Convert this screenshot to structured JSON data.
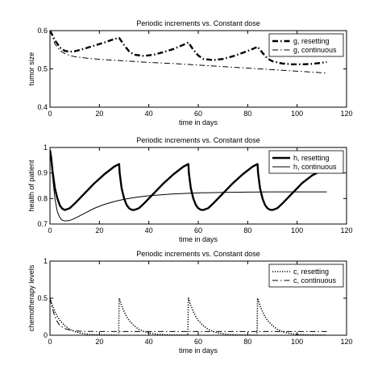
{
  "chart_data": [
    {
      "type": "line",
      "title": "Periodic increments vs. Constant dose",
      "xlabel": "time in days",
      "ylabel": "tumor size",
      "xlim": [
        0,
        120
      ],
      "ylim": [
        0.4,
        0.6
      ],
      "xticks": [
        "0",
        "20",
        "40",
        "60",
        "80",
        "100",
        "120"
      ],
      "yticks": [
        "0.4",
        "0.5",
        "0.6"
      ],
      "legend_position": "top-right",
      "grid": false,
      "series": [
        {
          "name": "g, resetting",
          "style": "dashdot-thick",
          "x": [
            0,
            1,
            2,
            4,
            6,
            8,
            10,
            14,
            18,
            22,
            26,
            28,
            30,
            32,
            34,
            38,
            42,
            46,
            50,
            54,
            56,
            58,
            60,
            62,
            66,
            70,
            74,
            78,
            82,
            84,
            86,
            88,
            90,
            94,
            98,
            102,
            106,
            110,
            112
          ],
          "y": [
            0.6,
            0.588,
            0.575,
            0.556,
            0.547,
            0.545,
            0.546,
            0.553,
            0.561,
            0.569,
            0.578,
            0.581,
            0.562,
            0.546,
            0.537,
            0.534,
            0.537,
            0.544,
            0.552,
            0.563,
            0.569,
            0.55,
            0.535,
            0.526,
            0.523,
            0.526,
            0.533,
            0.542,
            0.552,
            0.558,
            0.542,
            0.527,
            0.52,
            0.514,
            0.512,
            0.512,
            0.513,
            0.516,
            0.518
          ]
        },
        {
          "name": "g, continuous",
          "style": "dashdot-thin",
          "x": [
            0,
            1,
            2,
            4,
            6,
            8,
            10,
            15,
            20,
            30,
            40,
            50,
            60,
            70,
            80,
            90,
            100,
            110,
            112
          ],
          "y": [
            0.6,
            0.585,
            0.565,
            0.548,
            0.54,
            0.535,
            0.532,
            0.528,
            0.525,
            0.521,
            0.517,
            0.514,
            0.51,
            0.506,
            0.502,
            0.498,
            0.494,
            0.49,
            0.489
          ]
        }
      ]
    },
    {
      "type": "line",
      "title": "Periodic increments vs. Constant dose",
      "xlabel": "time in days",
      "ylabel": "health of patient",
      "xlim": [
        0,
        120
      ],
      "ylim": [
        0.7,
        1
      ],
      "xticks": [
        "0",
        "20",
        "40",
        "60",
        "80",
        "100",
        "120"
      ],
      "yticks": [
        "0.7",
        "0.8",
        "0.9",
        "1"
      ],
      "legend_position": "top-right",
      "grid": false,
      "series": [
        {
          "name": "h, resetting",
          "style": "solid-thick",
          "x": [
            0,
            0.5,
            1,
            2,
            3,
            4,
            5,
            6,
            8,
            10,
            14,
            18,
            22,
            26,
            28,
            28.2,
            29,
            30,
            31,
            32,
            33,
            34,
            36,
            38,
            42,
            46,
            50,
            54,
            56,
            56.2,
            57,
            58,
            59,
            60,
            61,
            62,
            64,
            66,
            70,
            74,
            78,
            82,
            84,
            84.2,
            85,
            86,
            87,
            88,
            89,
            90,
            92,
            94,
            98,
            102,
            106,
            110
          ],
          "y": [
            0.99,
            0.96,
            0.91,
            0.84,
            0.8,
            0.773,
            0.76,
            0.755,
            0.762,
            0.78,
            0.82,
            0.86,
            0.895,
            0.925,
            0.935,
            0.9,
            0.84,
            0.8,
            0.775,
            0.762,
            0.756,
            0.755,
            0.762,
            0.78,
            0.82,
            0.86,
            0.895,
            0.925,
            0.935,
            0.9,
            0.84,
            0.8,
            0.775,
            0.762,
            0.756,
            0.755,
            0.762,
            0.78,
            0.82,
            0.86,
            0.895,
            0.925,
            0.935,
            0.9,
            0.84,
            0.8,
            0.775,
            0.762,
            0.756,
            0.755,
            0.762,
            0.78,
            0.82,
            0.86,
            0.89,
            0.91
          ]
        },
        {
          "name": "h, continuous",
          "style": "solid-thin",
          "x": [
            0,
            0.5,
            1,
            2,
            3,
            4,
            5,
            6,
            8,
            10,
            14,
            18,
            22,
            26,
            30,
            35,
            40,
            50,
            60,
            70,
            80,
            90,
            100,
            110,
            112
          ],
          "y": [
            0.99,
            0.95,
            0.89,
            0.8,
            0.748,
            0.725,
            0.715,
            0.712,
            0.714,
            0.722,
            0.742,
            0.762,
            0.777,
            0.788,
            0.797,
            0.805,
            0.811,
            0.818,
            0.822,
            0.824,
            0.825,
            0.826,
            0.826,
            0.826,
            0.826
          ]
        }
      ]
    },
    {
      "type": "line",
      "title": "Periodic increments vs. Constant dose",
      "xlabel": "time in days",
      "ylabel": "chemotherapy levels",
      "xlim": [
        0,
        120
      ],
      "ylim": [
        0,
        1
      ],
      "xticks": [
        "0",
        "20",
        "40",
        "60",
        "80",
        "100",
        "120"
      ],
      "yticks": [
        "0",
        "0.5",
        "1"
      ],
      "legend_position": "top-right",
      "grid": false,
      "series": [
        {
          "name": "c, resetting",
          "style": "dotted",
          "x": [
            0,
            1,
            2,
            3,
            4,
            6,
            8,
            10,
            12,
            14,
            16,
            20,
            24,
            27.8,
            28,
            29,
            30,
            31,
            32,
            34,
            36,
            38,
            40,
            42,
            44,
            48,
            52,
            55.8,
            56,
            57,
            58,
            59,
            60,
            62,
            64,
            66,
            68,
            70,
            72,
            76,
            80,
            83.8,
            84,
            85,
            86,
            87,
            88,
            90,
            92,
            94,
            96,
            98,
            100,
            104,
            108,
            112
          ],
          "y": [
            0.5,
            0.4,
            0.32,
            0.25,
            0.2,
            0.13,
            0.08,
            0.05,
            0.03,
            0.02,
            0.01,
            0.005,
            0.002,
            0.001,
            0.5,
            0.4,
            0.32,
            0.25,
            0.2,
            0.13,
            0.08,
            0.05,
            0.03,
            0.02,
            0.01,
            0.005,
            0.002,
            0.001,
            0.5,
            0.4,
            0.32,
            0.25,
            0.2,
            0.13,
            0.08,
            0.05,
            0.03,
            0.02,
            0.01,
            0.005,
            0.002,
            0.001,
            0.5,
            0.4,
            0.32,
            0.25,
            0.2,
            0.13,
            0.08,
            0.05,
            0.03,
            0.02,
            0.01,
            0.005,
            0.002,
            0.001
          ]
        },
        {
          "name": "c, continuous",
          "style": "dashdot-thin",
          "x": [
            0,
            1,
            2,
            3,
            4,
            6,
            8,
            10,
            12,
            16,
            20,
            40,
            60,
            80,
            100,
            112
          ],
          "y": [
            0.5,
            0.36,
            0.25,
            0.18,
            0.13,
            0.09,
            0.07,
            0.06,
            0.055,
            0.052,
            0.05,
            0.05,
            0.05,
            0.05,
            0.05,
            0.05
          ]
        }
      ]
    }
  ]
}
